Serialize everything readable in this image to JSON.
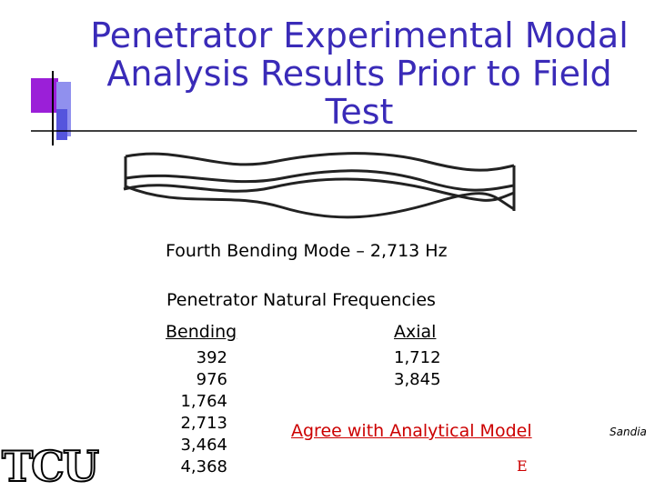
{
  "title_lines": [
    "Penetrator Experimental Modal",
    "Analysis Results Prior to Field",
    "Test"
  ],
  "figure_caption": "Fourth Bending Mode – 2,713 Hz",
  "table": {
    "heading": "Penetrator Natural Frequencies",
    "columns": [
      {
        "header": "Bending",
        "values": [
          "392",
          "976",
          "1,764",
          "2,713",
          "3,464",
          "4,368"
        ]
      },
      {
        "header": "Axial",
        "values": [
          "1,712",
          "3,845"
        ]
      }
    ]
  },
  "note": "Agree with Analytical Model",
  "source": "Sandia",
  "footer_mark": "E",
  "logo": "TCU"
}
